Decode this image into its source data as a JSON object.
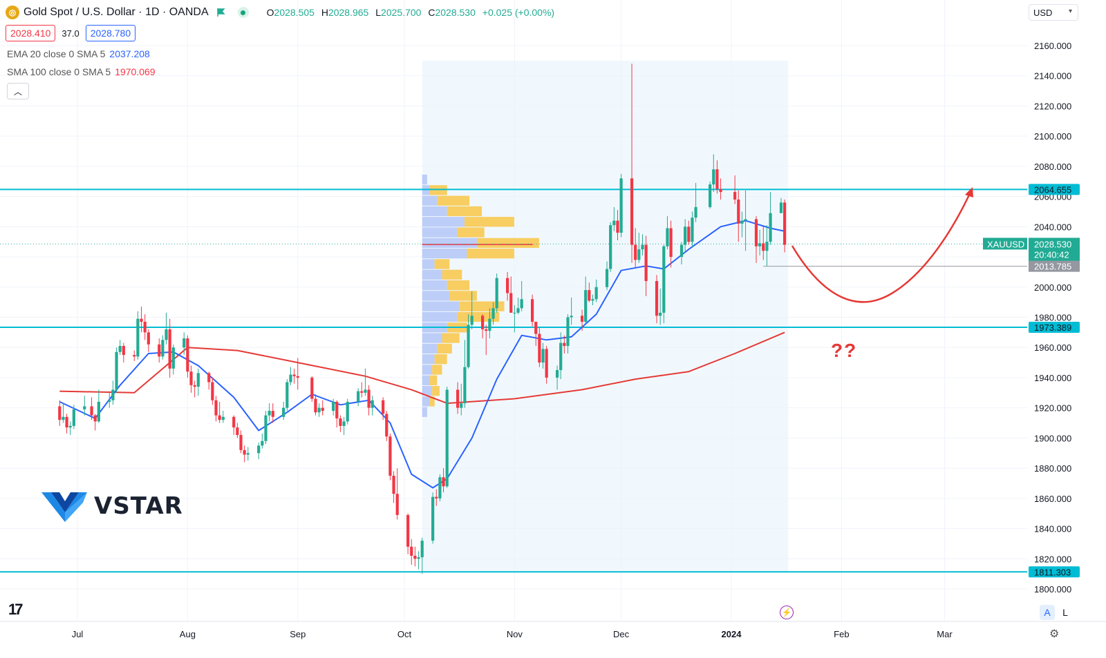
{
  "header": {
    "symbol_icon": "gold-coin-icon",
    "title": "Gold Spot / U.S. Dollar · 1D · OANDA",
    "ohlc": {
      "o_label": "O",
      "o": "2028.505",
      "h_label": "H",
      "h": "2028.965",
      "l_label": "L",
      "l": "2025.700",
      "c_label": "C",
      "c": "2028.530",
      "change": "+0.025 (+0.00%)"
    },
    "sell_price": "2028.410",
    "spread": "37.0",
    "buy_price": "2028.780",
    "currency": "USD"
  },
  "indicators": [
    {
      "name": "EMA 20 close 0 SMA 5",
      "value": "2037.208",
      "color": "#2962ff"
    },
    {
      "name": "SMA 100 close 0 SMA 5",
      "value": "1970.069",
      "color": "#f23645"
    }
  ],
  "chart_data": {
    "type": "candlestick",
    "symbol": "XAUUSD",
    "timeframe": "1D",
    "ylim": [
      1790,
      2172
    ],
    "y_ticks": [
      "2160.000",
      "2140.000",
      "2120.000",
      "2100.000",
      "2080.000",
      "2060.000",
      "2040.000",
      "2020.000",
      "2000.000",
      "1980.000",
      "1960.000",
      "1940.000",
      "1920.000",
      "1900.000",
      "1880.000",
      "1860.000",
      "1840.000",
      "1820.000",
      "1800.000"
    ],
    "x_ticks": [
      "Jul",
      "Aug",
      "Sep",
      "Oct",
      "Nov",
      "Dec",
      "2024",
      "Feb",
      "Mar"
    ],
    "horizontal_levels": [
      {
        "label": "2064.655",
        "value": 2064.655,
        "color": "#00bcd4"
      },
      {
        "label": "1973.389",
        "value": 1973.389,
        "color": "#00bcd4"
      },
      {
        "label": "1811.303",
        "value": 1811.303,
        "color": "#00bcd4"
      }
    ],
    "last_price": {
      "symbol": "XAUUSD",
      "price": "2028.530",
      "countdown": "20:40:42",
      "value": 2028.53,
      "color": "#22ab94"
    },
    "low_marker": {
      "label": "2013.785",
      "value": 2013.785
    },
    "candles": [
      [
        "2023-06-26",
        1921,
        1925,
        1908,
        1912
      ],
      [
        "2023-06-27",
        1912,
        1923,
        1910,
        1914
      ],
      [
        "2023-06-28",
        1914,
        1916,
        1903,
        1907
      ],
      [
        "2023-06-29",
        1907,
        1911,
        1902,
        1908
      ],
      [
        "2023-06-30",
        1908,
        1922,
        1906,
        1919
      ],
      [
        "2023-07-03",
        1919,
        1928,
        1915,
        1921
      ],
      [
        "2023-07-05",
        1921,
        1927,
        1912,
        1915
      ],
      [
        "2023-07-06",
        1915,
        1916,
        1905,
        1911
      ],
      [
        "2023-07-07",
        1911,
        1932,
        1910,
        1924
      ],
      [
        "2023-07-10",
        1924,
        1931,
        1920,
        1925
      ],
      [
        "2023-07-11",
        1925,
        1938,
        1922,
        1932
      ],
      [
        "2023-07-12",
        1932,
        1960,
        1930,
        1957
      ],
      [
        "2023-07-13",
        1957,
        1965,
        1955,
        1961
      ],
      [
        "2023-07-14",
        1961,
        1963,
        1950,
        1955
      ],
      [
        "2023-07-17",
        1955,
        1958,
        1951,
        1954
      ],
      [
        "2023-07-18",
        1954,
        1984,
        1952,
        1979
      ],
      [
        "2023-07-19",
        1979,
        1987,
        1970,
        1977
      ],
      [
        "2023-07-20",
        1977,
        1982,
        1965,
        1970
      ],
      [
        "2023-07-21",
        1970,
        1972,
        1957,
        1962
      ],
      [
        "2023-07-24",
        1962,
        1966,
        1950,
        1954
      ],
      [
        "2023-07-25",
        1954,
        1968,
        1952,
        1965
      ],
      [
        "2023-07-26",
        1965,
        1983,
        1962,
        1972
      ],
      [
        "2023-07-27",
        1972,
        1979,
        1940,
        1946
      ],
      [
        "2023-07-28",
        1946,
        1962,
        1942,
        1960
      ],
      [
        "2023-07-31",
        1960,
        1970,
        1955,
        1966
      ],
      [
        "2023-08-01",
        1966,
        1968,
        1940,
        1944
      ],
      [
        "2023-08-02",
        1944,
        1948,
        1930,
        1935
      ],
      [
        "2023-08-03",
        1935,
        1938,
        1927,
        1934
      ],
      [
        "2023-08-04",
        1934,
        1946,
        1928,
        1943
      ],
      [
        "2023-08-07",
        1943,
        1944,
        1932,
        1937
      ],
      [
        "2023-08-08",
        1937,
        1940,
        1922,
        1925
      ],
      [
        "2023-08-09",
        1925,
        1928,
        1911,
        1915
      ],
      [
        "2023-08-10",
        1915,
        1924,
        1910,
        1912
      ],
      [
        "2023-08-11",
        1912,
        1918,
        1910,
        1914
      ],
      [
        "2023-08-14",
        1914,
        1915,
        1902,
        1907
      ],
      [
        "2023-08-15",
        1907,
        1910,
        1900,
        1902
      ],
      [
        "2023-08-16",
        1902,
        1905,
        1890,
        1892
      ],
      [
        "2023-08-17",
        1892,
        1895,
        1884,
        1889
      ],
      [
        "2023-08-18",
        1889,
        1894,
        1885,
        1890
      ],
      [
        "2023-08-21",
        1890,
        1897,
        1886,
        1895
      ],
      [
        "2023-08-22",
        1895,
        1903,
        1893,
        1898
      ],
      [
        "2023-08-23",
        1898,
        1918,
        1896,
        1915
      ],
      [
        "2023-08-24",
        1915,
        1923,
        1911,
        1918
      ],
      [
        "2023-08-25",
        1918,
        1923,
        1910,
        1914
      ],
      [
        "2023-08-28",
        1914,
        1924,
        1912,
        1920
      ],
      [
        "2023-08-29",
        1920,
        1939,
        1918,
        1937
      ],
      [
        "2023-08-30",
        1937,
        1947,
        1935,
        1942
      ],
      [
        "2023-08-31",
        1942,
        1946,
        1936,
        1941
      ],
      [
        "2023-09-01",
        1941,
        1953,
        1932,
        1940
      ],
      [
        "2023-09-05",
        1940,
        1941,
        1924,
        1926
      ],
      [
        "2023-09-06",
        1926,
        1929,
        1915,
        1917
      ],
      [
        "2023-09-07",
        1917,
        1923,
        1914,
        1920
      ],
      [
        "2023-09-08",
        1920,
        1925,
        1915,
        1918
      ],
      [
        "2023-09-11",
        1918,
        1926,
        1915,
        1924
      ],
      [
        "2023-09-12",
        1924,
        1925,
        1907,
        1913
      ],
      [
        "2023-09-13",
        1913,
        1915,
        1904,
        1908
      ],
      [
        "2023-09-14",
        1908,
        1914,
        1902,
        1911
      ],
      [
        "2023-09-15",
        1911,
        1926,
        1909,
        1924
      ],
      [
        "2023-09-18",
        1924,
        1933,
        1921,
        1931
      ],
      [
        "2023-09-19",
        1931,
        1937,
        1927,
        1930
      ],
      [
        "2023-09-20",
        1930,
        1946,
        1928,
        1932
      ],
      [
        "2023-09-21",
        1932,
        1935,
        1915,
        1920
      ],
      [
        "2023-09-22",
        1920,
        1928,
        1915,
        1925
      ],
      [
        "2023-09-25",
        1925,
        1927,
        1912,
        1916
      ],
      [
        "2023-09-26",
        1916,
        1918,
        1898,
        1901
      ],
      [
        "2023-09-27",
        1901,
        1903,
        1872,
        1875
      ],
      [
        "2023-09-28",
        1875,
        1878,
        1857,
        1863
      ],
      [
        "2023-09-29",
        1863,
        1880,
        1846,
        1849
      ],
      [
        "2023-10-02",
        1849,
        1850,
        1823,
        1828
      ],
      [
        "2023-10-03",
        1828,
        1833,
        1816,
        1822
      ],
      [
        "2023-10-04",
        1822,
        1828,
        1815,
        1820
      ],
      [
        "2023-10-05",
        1820,
        1825,
        1813,
        1821
      ],
      [
        "2023-10-06",
        1821,
        1834,
        1810,
        1832
      ],
      [
        "2023-10-09",
        1832,
        1864,
        1830,
        1861
      ],
      [
        "2023-10-10",
        1861,
        1866,
        1855,
        1860
      ],
      [
        "2023-10-11",
        1860,
        1876,
        1858,
        1874
      ],
      [
        "2023-10-12",
        1874,
        1880,
        1864,
        1868
      ],
      [
        "2023-10-13",
        1868,
        1934,
        1867,
        1932
      ],
      [
        "2023-10-16",
        1932,
        1937,
        1916,
        1920
      ],
      [
        "2023-10-17",
        1920,
        1936,
        1915,
        1923
      ],
      [
        "2023-10-18",
        1923,
        1965,
        1920,
        1947
      ],
      [
        "2023-10-19",
        1947,
        1982,
        1946,
        1975
      ],
      [
        "2023-10-20",
        1975,
        1997,
        1972,
        1981
      ],
      [
        "2023-10-23",
        1981,
        1982,
        1966,
        1972
      ],
      [
        "2023-10-24",
        1972,
        1975,
        1955,
        1971
      ],
      [
        "2023-10-25",
        1971,
        1986,
        1966,
        1979
      ],
      [
        "2023-10-26",
        1979,
        1990,
        1975,
        1986
      ],
      [
        "2023-10-27",
        1986,
        2009,
        1983,
        2006
      ],
      [
        "2023-10-30",
        2006,
        2010,
        1991,
        1996
      ],
      [
        "2023-10-31",
        1996,
        2007,
        1983,
        1983
      ],
      [
        "2023-11-01",
        1983,
        1988,
        1970,
        1983
      ],
      [
        "2023-11-02",
        1983,
        1993,
        1982,
        1986
      ],
      [
        "2023-11-03",
        1986,
        2004,
        1984,
        1992
      ],
      [
        "2023-11-06",
        1992,
        1995,
        1974,
        1977
      ],
      [
        "2023-11-07",
        1977,
        1977,
        1961,
        1969
      ],
      [
        "2023-11-08",
        1969,
        1973,
        1947,
        1950
      ],
      [
        "2023-11-09",
        1950,
        1963,
        1946,
        1959
      ],
      [
        "2023-11-10",
        1959,
        1961,
        1936,
        1940
      ],
      [
        "2023-11-13",
        1940,
        1948,
        1932,
        1945
      ],
      [
        "2023-11-14",
        1945,
        1970,
        1939,
        1963
      ],
      [
        "2023-11-15",
        1963,
        1968,
        1956,
        1961
      ],
      [
        "2023-11-16",
        1961,
        1982,
        1956,
        1980
      ],
      [
        "2023-11-17",
        1980,
        1993,
        1975,
        1981
      ],
      [
        "2023-11-20",
        1981,
        1985,
        1971,
        1977
      ],
      [
        "2023-11-21",
        1977,
        2007,
        1975,
        1998
      ],
      [
        "2023-11-22",
        1998,
        2003,
        1990,
        1991
      ],
      [
        "2023-11-23",
        1991,
        1995,
        1988,
        1992
      ],
      [
        "2023-11-24",
        1992,
        2005,
        1990,
        2000
      ],
      [
        "2023-11-27",
        2000,
        2017,
        1998,
        2012
      ],
      [
        "2023-11-28",
        2012,
        2043,
        2010,
        2041
      ],
      [
        "2023-11-29",
        2041,
        2053,
        2037,
        2044
      ],
      [
        "2023-11-30",
        2044,
        2051,
        2031,
        2036
      ],
      [
        "2023-12-01",
        2036,
        2075,
        2033,
        2072
      ],
      [
        "2023-12-04",
        2072,
        2148,
        2016,
        2028
      ],
      [
        "2023-12-05",
        2028,
        2039,
        2013,
        2018
      ],
      [
        "2023-12-06",
        2018,
        2036,
        2016,
        2025
      ],
      [
        "2023-12-07",
        2025,
        2035,
        2021,
        2028
      ],
      [
        "2023-12-08",
        2028,
        2034,
        1994,
        2004
      ],
      [
        "2023-12-11",
        2004,
        2008,
        1976,
        1981
      ],
      [
        "2023-12-12",
        1981,
        1999,
        1975,
        1983
      ],
      [
        "2023-12-13",
        1983,
        2028,
        1976,
        2027
      ],
      [
        "2023-12-14",
        2027,
        2047,
        2025,
        2039
      ],
      [
        "2023-12-15",
        2039,
        2044,
        2013,
        2020
      ],
      [
        "2023-12-18",
        2020,
        2030,
        2015,
        2028
      ],
      [
        "2023-12-19",
        2028,
        2045,
        2023,
        2040
      ],
      [
        "2023-12-20",
        2040,
        2044,
        2028,
        2030
      ],
      [
        "2023-12-21",
        2030,
        2050,
        2026,
        2046
      ],
      [
        "2023-12-22",
        2046,
        2069,
        2043,
        2053
      ],
      [
        "2023-12-26",
        2053,
        2070,
        2052,
        2068
      ],
      [
        "2023-12-27",
        2068,
        2088,
        2063,
        2078
      ],
      [
        "2023-12-28",
        2078,
        2084,
        2062,
        2065
      ],
      [
        "2023-12-29",
        2065,
        2072,
        2058,
        2063
      ],
      [
        "2024-01-02",
        2063,
        2074,
        2055,
        2058
      ],
      [
        "2024-01-03",
        2058,
        2064,
        2030,
        2042
      ],
      [
        "2024-01-04",
        2042,
        2050,
        2033,
        2044
      ],
      [
        "2024-01-05",
        2044,
        2064,
        2024,
        2045
      ],
      [
        "2024-01-08",
        2045,
        2047,
        2016,
        2027
      ],
      [
        "2024-01-09",
        2027,
        2038,
        2021,
        2029
      ],
      [
        "2024-01-10",
        2029,
        2040,
        2018,
        2024
      ],
      [
        "2024-01-11",
        2024,
        2041,
        2014,
        2030
      ],
      [
        "2024-01-12",
        2030,
        2063,
        2028,
        2049
      ],
      [
        "2024-01-15",
        2049,
        2059,
        2050,
        2056
      ],
      [
        "2024-01-16",
        2056,
        2058,
        2023,
        2028
      ]
    ],
    "ema20": [
      [
        "2023-06-26",
        1924
      ],
      [
        "2023-07-06",
        1913
      ],
      [
        "2023-07-13",
        1935
      ],
      [
        "2023-07-21",
        1956
      ],
      [
        "2023-07-28",
        1957
      ],
      [
        "2023-08-04",
        1948
      ],
      [
        "2023-08-14",
        1927
      ],
      [
        "2023-08-21",
        1905
      ],
      [
        "2023-08-29",
        1917
      ],
      [
        "2023-09-05",
        1929
      ],
      [
        "2023-09-13",
        1922
      ],
      [
        "2023-09-21",
        1925
      ],
      [
        "2023-09-27",
        1910
      ],
      [
        "2023-10-03",
        1876
      ],
      [
        "2023-10-09",
        1867
      ],
      [
        "2023-10-13",
        1873
      ],
      [
        "2023-10-20",
        1900
      ],
      [
        "2023-10-27",
        1939
      ],
      [
        "2023-11-03",
        1968
      ],
      [
        "2023-11-10",
        1965
      ],
      [
        "2023-11-17",
        1967
      ],
      [
        "2023-11-24",
        1982
      ],
      [
        "2023-12-01",
        2011
      ],
      [
        "2023-12-08",
        2014
      ],
      [
        "2023-12-13",
        2012
      ],
      [
        "2023-12-20",
        2025
      ],
      [
        "2023-12-29",
        2040
      ],
      [
        "2024-01-05",
        2044
      ],
      [
        "2024-01-12",
        2039
      ],
      [
        "2024-01-16",
        2037
      ]
    ],
    "sma100": [
      [
        "2023-06-26",
        1931
      ],
      [
        "2023-07-17",
        1930
      ],
      [
        "2023-08-01",
        1960
      ],
      [
        "2023-08-15",
        1958
      ],
      [
        "2023-09-01",
        1950
      ],
      [
        "2023-09-20",
        1941
      ],
      [
        "2023-10-03",
        1932
      ],
      [
        "2023-10-13",
        1923
      ],
      [
        "2023-11-01",
        1926
      ],
      [
        "2023-11-20",
        1932
      ],
      [
        "2023-12-05",
        1939
      ],
      [
        "2023-12-20",
        1944
      ],
      [
        "2024-01-02",
        1956
      ],
      [
        "2024-01-16",
        1970
      ]
    ],
    "volume_profile": [
      {
        "price": 2071,
        "up": 2,
        "down": 0
      },
      {
        "price": 2064,
        "up": 3,
        "down": 7
      },
      {
        "price": 2057,
        "up": 6,
        "down": 13
      },
      {
        "price": 2050,
        "up": 10,
        "down": 14
      },
      {
        "price": 2043,
        "up": 17,
        "down": 20
      },
      {
        "price": 2036,
        "up": 14,
        "down": 11
      },
      {
        "price": 2029,
        "up": 22,
        "down": 25
      },
      {
        "price": 2022,
        "up": 18,
        "down": 19
      },
      {
        "price": 2015,
        "up": 5,
        "down": 6
      },
      {
        "price": 2008,
        "up": 8,
        "down": 8
      },
      {
        "price": 2001,
        "up": 10,
        "down": 9
      },
      {
        "price": 1994,
        "up": 11,
        "down": 11
      },
      {
        "price": 1987,
        "up": 15,
        "down": 18
      },
      {
        "price": 1980,
        "up": 14,
        "down": 17
      },
      {
        "price": 1973,
        "up": 10,
        "down": 8
      },
      {
        "price": 1966,
        "up": 8,
        "down": 7
      },
      {
        "price": 1959,
        "up": 6,
        "down": 6
      },
      {
        "price": 1952,
        "up": 5,
        "down": 5
      },
      {
        "price": 1945,
        "up": 4,
        "down": 4
      },
      {
        "price": 1938,
        "up": 3,
        "down": 3
      },
      {
        "price": 1931,
        "up": 4,
        "down": 3
      },
      {
        "price": 1924,
        "up": 3,
        "down": 2
      },
      {
        "price": 1917,
        "up": 2,
        "down": 0
      }
    ],
    "annotation": "??"
  },
  "watermark": {
    "brand": "VSTAR"
  },
  "bottom": {
    "auto_label": "A",
    "log_label": "L"
  }
}
